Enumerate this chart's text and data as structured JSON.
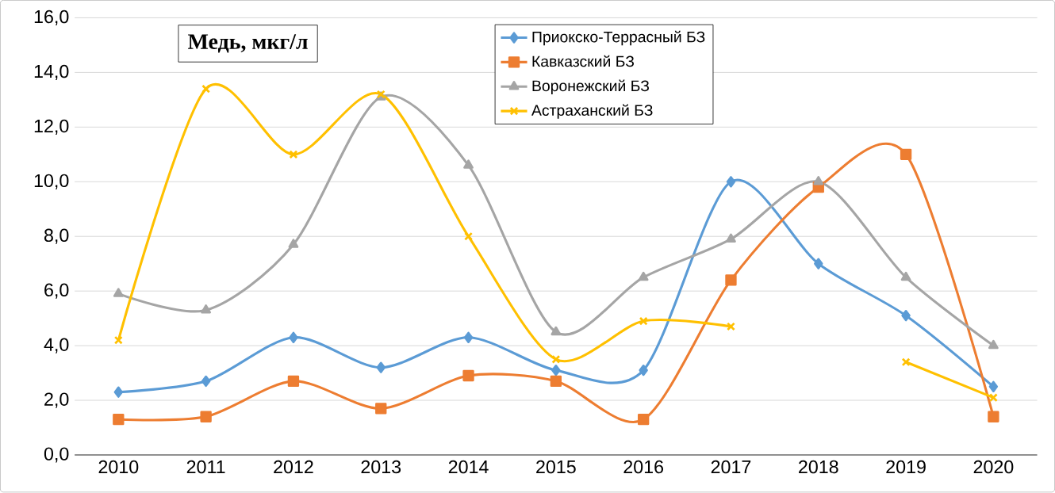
{
  "chart_data": {
    "type": "line",
    "title": "Медь, мкг/л",
    "categories": [
      "2010",
      "2011",
      "2012",
      "2013",
      "2014",
      "2015",
      "2016",
      "2017",
      "2018",
      "2019",
      "2020"
    ],
    "ylim": [
      0,
      16
    ],
    "yticks": [
      {
        "value": 0,
        "label": "0,0"
      },
      {
        "value": 2,
        "label": "2,0"
      },
      {
        "value": 4,
        "label": "4,0"
      },
      {
        "value": 6,
        "label": "6,0"
      },
      {
        "value": 8,
        "label": "8,0"
      },
      {
        "value": 10,
        "label": "10,0"
      },
      {
        "value": 12,
        "label": "12,0"
      },
      {
        "value": 14,
        "label": "14,0"
      },
      {
        "value": 16,
        "label": "16,0"
      }
    ],
    "grid": "y",
    "legend": "top",
    "series": [
      {
        "name": "Приокско-Террасный БЗ",
        "color": "#5b9bd5",
        "marker": "diamond",
        "values": [
          2.3,
          2.7,
          4.3,
          3.2,
          4.3,
          3.1,
          3.1,
          10.0,
          7.0,
          5.1,
          2.5
        ]
      },
      {
        "name": "Кавказский БЗ",
        "color": "#ed7d31",
        "marker": "square",
        "values": [
          1.3,
          1.4,
          2.7,
          1.7,
          2.9,
          2.7,
          1.3,
          6.4,
          9.8,
          11.0,
          1.4
        ]
      },
      {
        "name": "Воронежский БЗ",
        "color": "#a5a5a5",
        "marker": "triangle",
        "values": [
          5.9,
          5.3,
          7.7,
          13.1,
          10.6,
          4.5,
          6.5,
          7.9,
          10.0,
          6.5,
          4.0
        ]
      },
      {
        "name": "Астраханский БЗ",
        "color": "#ffc000",
        "marker": "cross",
        "values": [
          4.2,
          13.4,
          11.0,
          13.2,
          8.0,
          3.5,
          4.9,
          4.7,
          null,
          3.4,
          2.1
        ]
      }
    ]
  }
}
